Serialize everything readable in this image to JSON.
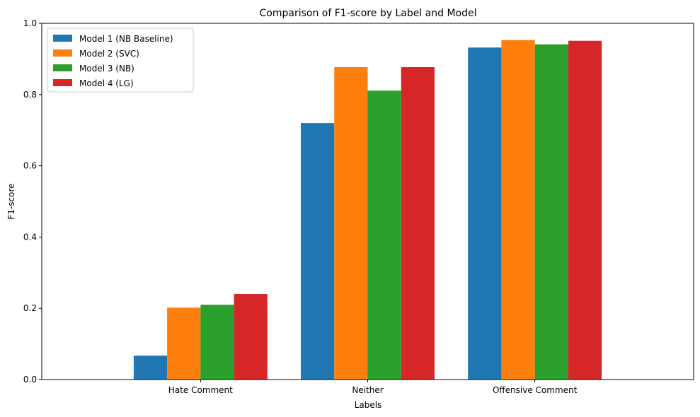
{
  "chart_data": {
    "type": "bar",
    "title": "Comparison of F1-score by Label and Model",
    "xlabel": "Labels",
    "ylabel": "F1-score",
    "categories": [
      "Hate Comment",
      "Neither",
      "Offensive Comment"
    ],
    "ylim": [
      0,
      1.0
    ],
    "yticks": [
      "0.0",
      "0.2",
      "0.4",
      "0.6",
      "0.8",
      "1.0"
    ],
    "grid": false,
    "legend_position": "top-left",
    "series": [
      {
        "name": "Model 1 (NB Baseline)",
        "color": "#1f77b4",
        "values": [
          0.067,
          0.72,
          0.932
        ]
      },
      {
        "name": "Model 2 (SVC)",
        "color": "#ff7f0e",
        "values": [
          0.202,
          0.877,
          0.953
        ]
      },
      {
        "name": "Model 3 (NB)",
        "color": "#2ca02c",
        "values": [
          0.21,
          0.811,
          0.941
        ]
      },
      {
        "name": "Model 4 (LG)",
        "color": "#d62728",
        "values": [
          0.24,
          0.877,
          0.951
        ]
      }
    ]
  }
}
